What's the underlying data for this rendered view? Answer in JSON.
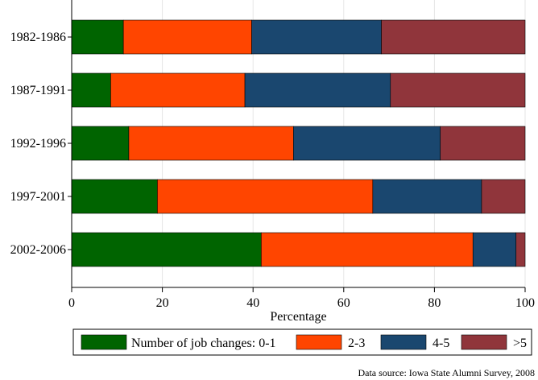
{
  "chart_data": {
    "type": "bar",
    "orientation": "horizontal",
    "stacked": true,
    "categories": [
      "1982-1986",
      "1987-1991",
      "1992-1996",
      "1997-2001",
      "2002-2006"
    ],
    "series": [
      {
        "name": "0-1",
        "color": "#006400",
        "values": [
          11.4,
          8.6,
          12.6,
          18.9,
          41.8
        ]
      },
      {
        "name": "2-3",
        "color": "#ff4500",
        "values": [
          28.3,
          29.6,
          36.3,
          47.5,
          46.7
        ]
      },
      {
        "name": "4-5",
        "color": "#1a476f",
        "values": [
          28.6,
          32.1,
          32.4,
          24.0,
          9.5
        ]
      },
      {
        "name": ">5",
        "color": "#90353b",
        "values": [
          31.7,
          29.7,
          18.7,
          9.6,
          2.0
        ]
      }
    ],
    "xlabel": "Percentage",
    "xlim": [
      0,
      100
    ],
    "xticks": [
      "0",
      "20",
      "40",
      "60",
      "80",
      "100"
    ],
    "grid": true,
    "legend_title": "Number of job changes:",
    "legend_position": "bottom",
    "note": "Data source: Iowa State Alumni Survey, 2008"
  }
}
